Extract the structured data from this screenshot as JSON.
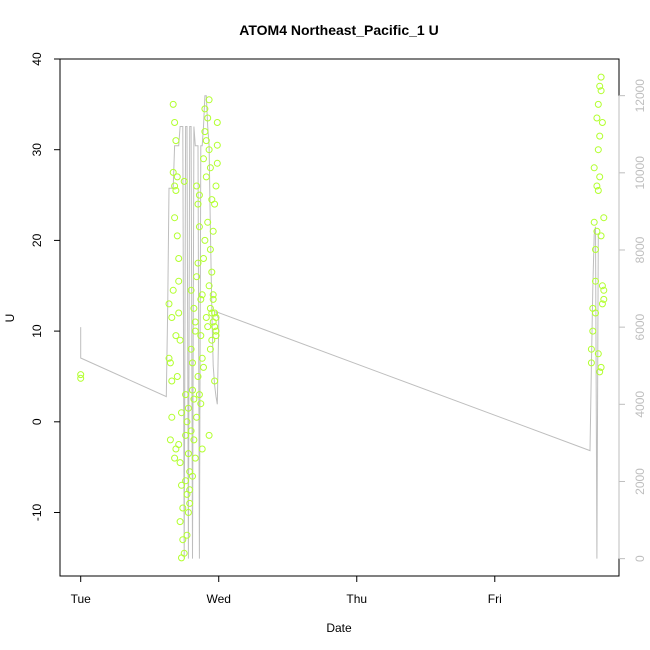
{
  "chart_data": {
    "type": "scatter",
    "title": "ATOM4 Northeast_Pacific_1 U",
    "xlabel": "Date",
    "ylabel": "U",
    "x_ticks": [
      "Tue",
      "Wed",
      "Thu",
      "Fri"
    ],
    "x_tick_days": [
      0,
      1,
      2,
      3
    ],
    "xlim_days": [
      -0.15,
      3.9
    ],
    "ylim": [
      -17,
      40
    ],
    "y_ticks": [
      -10,
      0,
      10,
      20,
      30,
      40
    ],
    "y2_ticks": [
      0,
      2000,
      4000,
      6000,
      8000,
      10000,
      12000
    ],
    "y2lim": [
      -450,
      12950
    ],
    "colors": {
      "points": "#b2ff2e",
      "line": "#bebebe",
      "axis": "#000000",
      "right_axis": "#bebebe"
    },
    "series": [
      {
        "kind": "points",
        "x_days": [
          0.0,
          0.0,
          0.64,
          0.64,
          0.65,
          0.65,
          0.66,
          0.66,
          0.66,
          0.67,
          0.67,
          0.67,
          0.68,
          0.68,
          0.68,
          0.68,
          0.69,
          0.69,
          0.69,
          0.69,
          0.7,
          0.7,
          0.7,
          0.71,
          0.71,
          0.71,
          0.71,
          0.72,
          0.72,
          0.72,
          0.73,
          0.73,
          0.73,
          0.74,
          0.74,
          0.75,
          0.75,
          0.76,
          0.76,
          0.76,
          0.77,
          0.77,
          0.77,
          0.78,
          0.78,
          0.78,
          0.79,
          0.79,
          0.79,
          0.8,
          0.8,
          0.8,
          0.81,
          0.81,
          0.81,
          0.82,
          0.82,
          0.82,
          0.83,
          0.83,
          0.83,
          0.84,
          0.84,
          0.84,
          0.85,
          0.85,
          0.85,
          0.86,
          0.86,
          0.86,
          0.87,
          0.87,
          0.87,
          0.88,
          0.88,
          0.88,
          0.89,
          0.89,
          0.89,
          0.9,
          0.9,
          0.9,
          0.91,
          0.91,
          0.91,
          0.92,
          0.92,
          0.92,
          0.93,
          0.93,
          0.93,
          0.94,
          0.94,
          0.94,
          0.95,
          0.95,
          0.95,
          0.96,
          0.96,
          0.96,
          0.97,
          0.97,
          0.97,
          0.98,
          0.98,
          0.98,
          0.99,
          0.99,
          0.99,
          0.98,
          0.97,
          0.96,
          0.95,
          0.94,
          0.93,
          3.7,
          3.7,
          3.71,
          3.71,
          3.72,
          3.72,
          3.73,
          3.73,
          3.73,
          3.74,
          3.74,
          3.74,
          3.75,
          3.75,
          3.75,
          3.75,
          3.76,
          3.76,
          3.76,
          3.76,
          3.77,
          3.77,
          3.77,
          3.77,
          3.78,
          3.78,
          3.78,
          3.79,
          3.79,
          3.79
        ],
        "y": [
          5.2,
          4.8,
          13.0,
          7.0,
          6.5,
          -2.0,
          11.5,
          4.5,
          0.5,
          35.0,
          27.5,
          14.5,
          33.0,
          26.0,
          22.5,
          -4.0,
          31.0,
          25.5,
          9.5,
          -3.0,
          27.0,
          20.5,
          5.0,
          18.0,
          15.5,
          -2.5,
          12.0,
          9.0,
          -4.5,
          -11.0,
          1.0,
          -7.0,
          -15.0,
          -9.5,
          -13.0,
          26.5,
          -14.5,
          -6.5,
          -1.5,
          3.0,
          -12.5,
          0.0,
          -8.0,
          -10.0,
          -3.5,
          1.5,
          -5.5,
          -9.0,
          -7.5,
          14.5,
          8.0,
          -1.0,
          6.5,
          3.5,
          -6.0,
          12.5,
          2.5,
          -2.0,
          11.0,
          10.0,
          -4.0,
          26.0,
          16.0,
          0.5,
          24.0,
          17.5,
          5.0,
          25.0,
          21.5,
          3.0,
          13.5,
          9.5,
          2.0,
          14.0,
          7.0,
          -3.0,
          29.0,
          18.0,
          6.0,
          34.5,
          32.0,
          20.0,
          31.0,
          27.0,
          11.5,
          33.5,
          22.0,
          10.5,
          35.5,
          30.0,
          15.0,
          28.0,
          19.0,
          12.5,
          24.5,
          16.5,
          9.0,
          21.0,
          14.0,
          11.0,
          12.0,
          10.5,
          4.5,
          10.0,
          9.5,
          11.5,
          33.0,
          30.5,
          28.5,
          26.0,
          24.0,
          13.5,
          12.0,
          8.0,
          -1.5,
          8.0,
          6.5,
          12.5,
          10.0,
          28.0,
          22.0,
          19.0,
          15.5,
          12.0,
          33.5,
          26.0,
          21.0,
          35.0,
          30.0,
          25.5,
          7.5,
          37.0,
          31.5,
          27.0,
          5.5,
          38.0,
          36.5,
          20.5,
          6.0,
          33.0,
          15.0,
          13.0,
          22.5,
          14.5,
          13.5
        ]
      },
      {
        "kind": "line",
        "axis": "right",
        "x_days": [
          0.0,
          0.0,
          0.62,
          0.63,
          0.64,
          0.65,
          0.66,
          0.67,
          0.68,
          0.69,
          0.7,
          0.71,
          0.72,
          0.73,
          0.74,
          0.75,
          0.76,
          0.77,
          0.78,
          0.79,
          0.8,
          0.81,
          0.82,
          0.83,
          0.84,
          0.85,
          0.86,
          0.87,
          0.88,
          0.89,
          0.9,
          0.91,
          0.92,
          0.93,
          0.94,
          0.95,
          0.96,
          0.97,
          0.98,
          0.99,
          1.0,
          1.0,
          0.99,
          0.98,
          3.69,
          3.7,
          3.71,
          3.72,
          3.73,
          3.74,
          3.75,
          3.76
        ],
        "y": [
          6000,
          5200,
          4200,
          6500,
          9600,
          9600,
          9600,
          9600,
          10700,
          10700,
          10700,
          10700,
          11200,
          11200,
          11200,
          0,
          11200,
          11200,
          0,
          11200,
          11200,
          0,
          11200,
          10700,
          10700,
          10700,
          0,
          10700,
          10700,
          11200,
          12000,
          12000,
          11200,
          10700,
          8500,
          6500,
          5000,
          4500,
          4200,
          4000,
          6000,
          6200,
          6300,
          6400,
          2800,
          5000,
          7000,
          8400,
          8600,
          0,
          8400,
          8400
        ]
      }
    ]
  }
}
